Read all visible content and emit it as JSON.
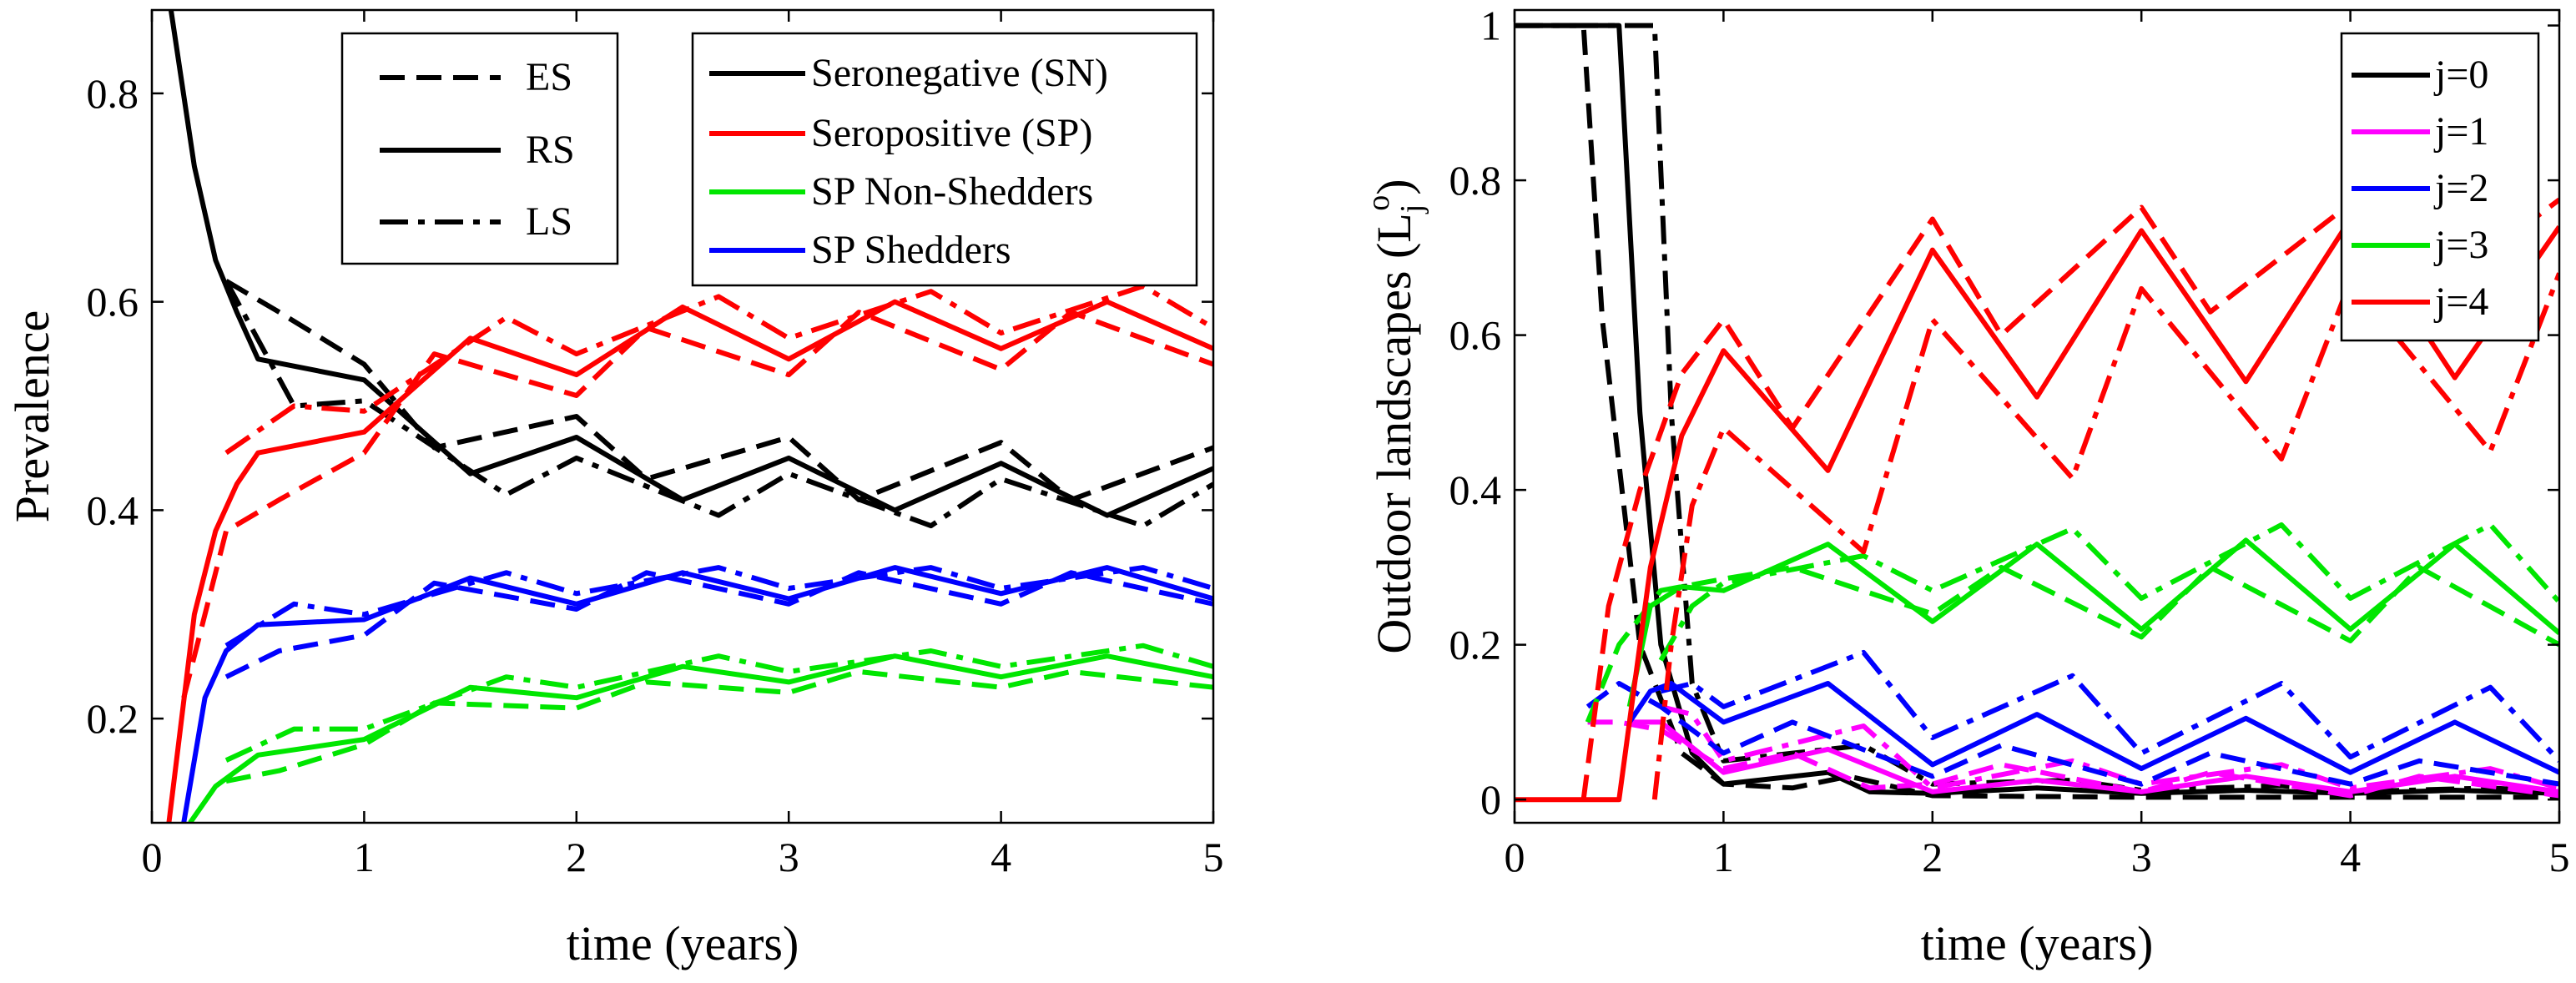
{
  "chart_data": [
    {
      "type": "line",
      "title": "",
      "xlabel": "time (years)",
      "ylabel": "Prevalence",
      "xlim": [
        0,
        5
      ],
      "ylim": [
        0.1,
        0.88
      ],
      "xticks": [
        0,
        1,
        2,
        3,
        4,
        5
      ],
      "yticks": [
        0.2,
        0.4,
        0.6,
        0.8
      ],
      "xtick_labels": [
        "0",
        "1",
        "2",
        "3",
        "4",
        "5"
      ],
      "ytick_labels": [
        "0.2",
        "0.4",
        "0.6",
        "0.8"
      ],
      "grid": false,
      "style_legend": {
        "location": "top-center",
        "entries": [
          {
            "label": "ES",
            "dash": "dashed"
          },
          {
            "label": "RS",
            "dash": "solid"
          },
          {
            "label": "LS",
            "dash": "dashdot"
          }
        ]
      },
      "color_legend": {
        "location": "top-right",
        "entries": [
          {
            "label": "Seronegative (SN)",
            "color": "#000000"
          },
          {
            "label": "Seropositive (SP)",
            "color": "#ff0000"
          },
          {
            "label": "SP Non-Shedders",
            "color": "#00e600"
          },
          {
            "label": "SP Shedders",
            "color": "#0000ff"
          }
        ]
      },
      "series": [
        {
          "name": "SN ES",
          "color": "#000000",
          "dash": "dashed",
          "x": [
            0.35,
            0.6,
            1.0,
            1.33,
            2.0,
            2.33,
            3.0,
            3.33,
            4.0,
            4.33,
            5.0
          ],
          "y": [
            0.62,
            0.59,
            0.54,
            0.46,
            0.49,
            0.43,
            0.47,
            0.41,
            0.465,
            0.41,
            0.46
          ]
        },
        {
          "name": "SN RS",
          "color": "#000000",
          "dash": "solid",
          "x": [
            0.09,
            0.2,
            0.3,
            0.4,
            0.5,
            1.0,
            1.5,
            2.0,
            2.5,
            3.0,
            3.5,
            4.0,
            4.5,
            5.0
          ],
          "y": [
            0.88,
            0.73,
            0.64,
            0.59,
            0.545,
            0.525,
            0.435,
            0.47,
            0.41,
            0.45,
            0.4,
            0.445,
            0.395,
            0.44
          ]
        },
        {
          "name": "SN LS",
          "color": "#000000",
          "dash": "dashdot",
          "x": [
            0.35,
            0.67,
            1.0,
            1.67,
            2.0,
            2.67,
            3.0,
            3.67,
            4.0,
            4.67,
            5.0
          ],
          "y": [
            0.62,
            0.5,
            0.505,
            0.415,
            0.45,
            0.395,
            0.435,
            0.385,
            0.43,
            0.385,
            0.425
          ]
        },
        {
          "name": "SP ES",
          "color": "#ff0000",
          "dash": "dashed",
          "x": [
            0.15,
            0.35,
            0.6,
            1.0,
            1.33,
            2.0,
            2.33,
            3.0,
            3.33,
            4.0,
            4.33,
            5.0
          ],
          "y": [
            0.22,
            0.38,
            0.41,
            0.455,
            0.55,
            0.51,
            0.575,
            0.53,
            0.59,
            0.535,
            0.59,
            0.54
          ]
        },
        {
          "name": "SP RS",
          "color": "#ff0000",
          "dash": "solid",
          "x": [
            0.08,
            0.2,
            0.3,
            0.4,
            0.5,
            1.0,
            1.5,
            2.0,
            2.5,
            3.0,
            3.5,
            4.0,
            4.5,
            5.0
          ],
          "y": [
            0.1,
            0.3,
            0.38,
            0.425,
            0.455,
            0.475,
            0.565,
            0.53,
            0.595,
            0.545,
            0.6,
            0.555,
            0.6,
            0.555
          ]
        },
        {
          "name": "SP LS",
          "color": "#ff0000",
          "dash": "dashdot",
          "x": [
            0.35,
            0.67,
            1.0,
            1.67,
            2.0,
            2.67,
            3.0,
            3.67,
            4.0,
            4.67,
            5.0
          ],
          "y": [
            0.455,
            0.5,
            0.495,
            0.585,
            0.55,
            0.605,
            0.565,
            0.61,
            0.57,
            0.615,
            0.575
          ]
        },
        {
          "name": "SPS ES",
          "color": "#0000ff",
          "dash": "dashed",
          "x": [
            0.35,
            0.6,
            1.0,
            1.33,
            2.0,
            2.33,
            3.0,
            3.33,
            4.0,
            4.33,
            5.0
          ],
          "y": [
            0.24,
            0.265,
            0.28,
            0.33,
            0.305,
            0.34,
            0.31,
            0.34,
            0.31,
            0.34,
            0.31
          ]
        },
        {
          "name": "SPS RS",
          "color": "#0000ff",
          "dash": "solid",
          "x": [
            0.15,
            0.25,
            0.35,
            0.5,
            1.0,
            1.5,
            2.0,
            2.5,
            3.0,
            3.5,
            4.0,
            4.5,
            5.0
          ],
          "y": [
            0.1,
            0.22,
            0.265,
            0.29,
            0.295,
            0.335,
            0.31,
            0.34,
            0.315,
            0.345,
            0.32,
            0.345,
            0.315
          ]
        },
        {
          "name": "SPS LS",
          "color": "#0000ff",
          "dash": "dashdot",
          "x": [
            0.35,
            0.67,
            1.0,
            1.67,
            2.0,
            2.67,
            3.0,
            3.67,
            4.0,
            4.67,
            5.0
          ],
          "y": [
            0.27,
            0.31,
            0.3,
            0.34,
            0.32,
            0.345,
            0.325,
            0.345,
            0.325,
            0.345,
            0.325
          ]
        },
        {
          "name": "SPN ES",
          "color": "#00e600",
          "dash": "dashed",
          "x": [
            0.35,
            0.6,
            1.0,
            1.33,
            2.0,
            2.33,
            3.0,
            3.33,
            4.0,
            4.33,
            5.0
          ],
          "y": [
            0.14,
            0.15,
            0.175,
            0.215,
            0.21,
            0.235,
            0.225,
            0.245,
            0.23,
            0.245,
            0.23
          ]
        },
        {
          "name": "SPN RS",
          "color": "#00e600",
          "dash": "solid",
          "x": [
            0.18,
            0.3,
            0.5,
            1.0,
            1.5,
            2.0,
            2.5,
            3.0,
            3.5,
            4.0,
            4.5,
            5.0
          ],
          "y": [
            0.1,
            0.135,
            0.165,
            0.18,
            0.23,
            0.22,
            0.25,
            0.235,
            0.26,
            0.24,
            0.26,
            0.24
          ]
        },
        {
          "name": "SPN LS",
          "color": "#00e600",
          "dash": "dashdot",
          "x": [
            0.35,
            0.67,
            1.0,
            1.67,
            2.0,
            2.67,
            3.0,
            3.67,
            4.0,
            4.67,
            5.0
          ],
          "y": [
            0.16,
            0.19,
            0.19,
            0.24,
            0.23,
            0.26,
            0.245,
            0.265,
            0.25,
            0.27,
            0.25
          ]
        }
      ]
    },
    {
      "type": "line",
      "title": "",
      "xlabel": "time (years)",
      "ylabel": "Outdoor landscapes (L",
      "ylabel_sub": "j",
      "ylabel_sup": "o",
      "ylabel_end": ")",
      "xlim": [
        0,
        5
      ],
      "ylim": [
        -0.03,
        1.02
      ],
      "xticks": [
        0,
        1,
        2,
        3,
        4,
        5
      ],
      "yticks": [
        0,
        0.2,
        0.4,
        0.6,
        0.8,
        1
      ],
      "xtick_labels": [
        "0",
        "1",
        "2",
        "3",
        "4",
        "5"
      ],
      "ytick_labels": [
        "0",
        "0.2",
        "0.4",
        "0.6",
        "0.8",
        "1"
      ],
      "grid": false,
      "legend": {
        "location": "top-right",
        "entries": [
          {
            "label": "j=0",
            "color": "#000000"
          },
          {
            "label": "j=1",
            "color": "#ff00ff"
          },
          {
            "label": "j=2",
            "color": "#0000ff"
          },
          {
            "label": "j=3",
            "color": "#00e600"
          },
          {
            "label": "j=4",
            "color": "#ff0000"
          }
        ]
      },
      "series": [
        {
          "name": "j=0 ES",
          "color": "#000000",
          "dash": "dashed",
          "x": [
            0.0,
            0.33,
            0.42,
            0.6,
            0.8,
            1.0,
            1.33,
            1.6,
            2.0,
            3.0,
            4.0,
            5.0
          ],
          "y": [
            1.0,
            1.0,
            0.62,
            0.2,
            0.06,
            0.02,
            0.015,
            0.03,
            0.005,
            0.003,
            0.003,
            0.003
          ]
        },
        {
          "name": "j=0 RS",
          "color": "#000000",
          "dash": "solid",
          "x": [
            0.0,
            0.5,
            0.6,
            0.7,
            0.85,
            1.0,
            1.5,
            1.7,
            2.0,
            2.5,
            3.0,
            3.5,
            4.0,
            4.5,
            5.0
          ],
          "y": [
            1.0,
            1.0,
            0.5,
            0.2,
            0.06,
            0.02,
            0.035,
            0.01,
            0.008,
            0.015,
            0.008,
            0.012,
            0.008,
            0.012,
            0.008
          ]
        },
        {
          "name": "j=0 LS",
          "color": "#000000",
          "dash": "dashdot",
          "x": [
            0.0,
            0.67,
            0.75,
            0.85,
            1.0,
            1.67,
            2.0,
            2.67,
            3.0,
            3.67,
            4.0,
            4.67,
            5.0
          ],
          "y": [
            1.0,
            1.0,
            0.5,
            0.15,
            0.05,
            0.07,
            0.02,
            0.025,
            0.012,
            0.018,
            0.01,
            0.015,
            0.01
          ]
        },
        {
          "name": "j=1 ES",
          "color": "#ff00ff",
          "dash": "dashed",
          "x": [
            0.35,
            0.5,
            0.7,
            1.0,
            1.33,
            1.7,
            2.0,
            2.33,
            3.0,
            3.33,
            4.0,
            4.33,
            5.0
          ],
          "y": [
            0.1,
            0.1,
            0.09,
            0.04,
            0.06,
            0.015,
            0.02,
            0.045,
            0.01,
            0.035,
            0.005,
            0.03,
            0.005
          ]
        },
        {
          "name": "j=1 RS",
          "color": "#ff00ff",
          "dash": "solid",
          "x": [
            0.55,
            0.7,
            1.0,
            1.5,
            2.0,
            2.5,
            3.0,
            3.5,
            4.0,
            4.5,
            5.0
          ],
          "y": [
            0.1,
            0.1,
            0.035,
            0.065,
            0.01,
            0.025,
            0.01,
            0.03,
            0.01,
            0.03,
            0.01
          ]
        },
        {
          "name": "j=1 LS",
          "color": "#ff00ff",
          "dash": "dashdot",
          "x": [
            0.7,
            0.85,
            1.0,
            1.67,
            2.0,
            2.67,
            3.0,
            3.67,
            4.0,
            4.67,
            5.0
          ],
          "y": [
            0.12,
            0.11,
            0.05,
            0.095,
            0.015,
            0.05,
            0.02,
            0.045,
            0.015,
            0.04,
            0.015
          ]
        },
        {
          "name": "j=2 ES",
          "color": "#0000ff",
          "dash": "dashed",
          "x": [
            0.35,
            0.5,
            0.7,
            1.0,
            1.33,
            2.0,
            2.33,
            3.0,
            3.33,
            4.0,
            4.33,
            5.0
          ],
          "y": [
            0.12,
            0.15,
            0.12,
            0.06,
            0.1,
            0.03,
            0.07,
            0.02,
            0.06,
            0.02,
            0.05,
            0.02
          ]
        },
        {
          "name": "j=2 RS",
          "color": "#0000ff",
          "dash": "solid",
          "x": [
            0.55,
            0.65,
            0.75,
            0.85,
            1.0,
            1.5,
            2.0,
            2.5,
            3.0,
            3.5,
            4.0,
            4.5,
            5.0
          ],
          "y": [
            0.1,
            0.14,
            0.15,
            0.13,
            0.1,
            0.15,
            0.045,
            0.11,
            0.04,
            0.105,
            0.035,
            0.1,
            0.035
          ]
        },
        {
          "name": "j=2 LS",
          "color": "#0000ff",
          "dash": "dashdot",
          "x": [
            0.7,
            0.85,
            1.0,
            1.67,
            2.0,
            2.67,
            3.0,
            3.67,
            4.0,
            4.67,
            5.0
          ],
          "y": [
            0.14,
            0.15,
            0.12,
            0.19,
            0.08,
            0.16,
            0.06,
            0.15,
            0.055,
            0.145,
            0.05
          ]
        },
        {
          "name": "j=3 ES",
          "color": "#00e600",
          "dash": "dashed",
          "x": [
            0.35,
            0.5,
            0.7,
            1.0,
            1.33,
            2.0,
            2.33,
            3.0,
            3.33,
            4.0,
            4.33,
            5.0
          ],
          "y": [
            0.1,
            0.2,
            0.27,
            0.285,
            0.3,
            0.24,
            0.3,
            0.21,
            0.3,
            0.205,
            0.3,
            0.2
          ]
        },
        {
          "name": "j=3 RS",
          "color": "#00e600",
          "dash": "solid",
          "x": [
            0.55,
            0.65,
            0.8,
            1.0,
            1.5,
            2.0,
            2.5,
            3.0,
            3.5,
            4.0,
            4.5,
            5.0
          ],
          "y": [
            0.12,
            0.25,
            0.275,
            0.27,
            0.33,
            0.23,
            0.33,
            0.22,
            0.335,
            0.22,
            0.33,
            0.215
          ]
        },
        {
          "name": "j=3 LS",
          "color": "#00e600",
          "dash": "dashdot",
          "x": [
            0.7,
            0.85,
            1.0,
            1.67,
            2.0,
            2.67,
            3.0,
            3.67,
            4.0,
            4.67,
            5.0
          ],
          "y": [
            0.18,
            0.25,
            0.28,
            0.315,
            0.27,
            0.35,
            0.26,
            0.355,
            0.26,
            0.355,
            0.255
          ]
        },
        {
          "name": "j=4 ES",
          "color": "#ff0000",
          "dash": "dashed",
          "x": [
            0.33,
            0.45,
            0.6,
            0.8,
            1.0,
            1.33,
            2.0,
            2.33,
            3.0,
            3.33,
            4.0,
            4.33,
            5.0
          ],
          "y": [
            0.0,
            0.25,
            0.4,
            0.55,
            0.62,
            0.48,
            0.75,
            0.6,
            0.765,
            0.63,
            0.77,
            0.64,
            0.775
          ]
        },
        {
          "name": "j=4 RS",
          "color": "#ff0000",
          "dash": "solid",
          "x": [
            0.0,
            0.5,
            0.55,
            0.65,
            0.8,
            1.0,
            1.5,
            2.0,
            2.5,
            3.0,
            3.5,
            4.0,
            4.5,
            5.0
          ],
          "y": [
            0.0,
            0.0,
            0.1,
            0.3,
            0.47,
            0.58,
            0.425,
            0.71,
            0.52,
            0.735,
            0.54,
            0.75,
            0.545,
            0.74
          ]
        },
        {
          "name": "j=4 LS",
          "color": "#ff0000",
          "dash": "dashdot",
          "x": [
            0.67,
            0.75,
            0.85,
            1.0,
            1.67,
            2.0,
            2.67,
            3.0,
            3.67,
            4.0,
            4.67,
            5.0
          ],
          "y": [
            0.0,
            0.2,
            0.38,
            0.48,
            0.32,
            0.62,
            0.415,
            0.66,
            0.44,
            0.67,
            0.45,
            0.68
          ]
        }
      ]
    }
  ]
}
